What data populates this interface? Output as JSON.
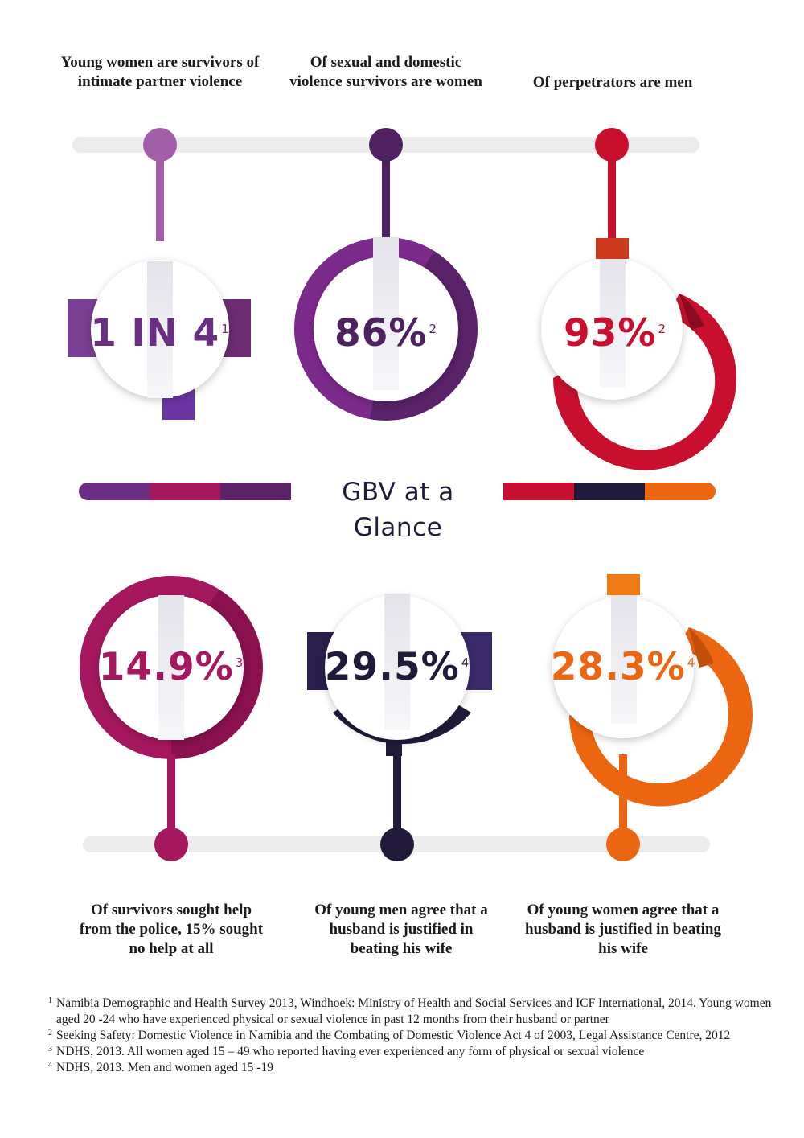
{
  "title": "GBV at a Glance",
  "colors": {
    "light_purple": "#a35ea8",
    "purple": "#6a2e82",
    "red": "#c8102e",
    "magenta": "#a5175f",
    "navy": "#221a3a",
    "orange": "#ec6511"
  },
  "stats": [
    {
      "value": "1 IN 4",
      "footnote": "1",
      "caption": "Young women are survivors of intimate partner violence",
      "color": "#6a2e82"
    },
    {
      "value": "86%",
      "footnote": "2",
      "caption": "Of sexual and domestic violence survivors are women",
      "color": "#4e2160"
    },
    {
      "value": "93%",
      "footnote": "2",
      "caption": "Of perpetrators are men",
      "color": "#c8102e"
    },
    {
      "value": "14.9%",
      "footnote": "3",
      "caption": "Of survivors sought help from the police, 15% sought no help at all",
      "color": "#a5175f"
    },
    {
      "value": "29.5%",
      "footnote": "4",
      "caption": "Of young men agree that a husband is justified in beating his wife",
      "color": "#221a3a"
    },
    {
      "value": "28.3%",
      "footnote": "4",
      "caption": "Of young women agree that a husband is justified in beating his wife",
      "color": "#ec6511"
    }
  ],
  "footnotes": [
    {
      "mark": "1",
      "text": "Namibia Demographic and Health Survey 2013, Windhoek: Ministry of Health and Social Services and ICF International, 2014. Young women aged 20 -24 who have experienced physical or sexual violence in past 12 months from their husband or partner"
    },
    {
      "mark": "2",
      "text": "Seeking Safety: Domestic Violence in Namibia and the Combating of Domestic Violence Act 4 of 2003, Legal Assistance Centre, 2012"
    },
    {
      "mark": "3",
      "text": "NDHS, 2013. All women aged 15 – 49 who reported having ever experienced any form of physical or sexual violence"
    },
    {
      "mark": "4",
      "text": "NDHS, 2013. Men and women aged 15 -19"
    }
  ]
}
